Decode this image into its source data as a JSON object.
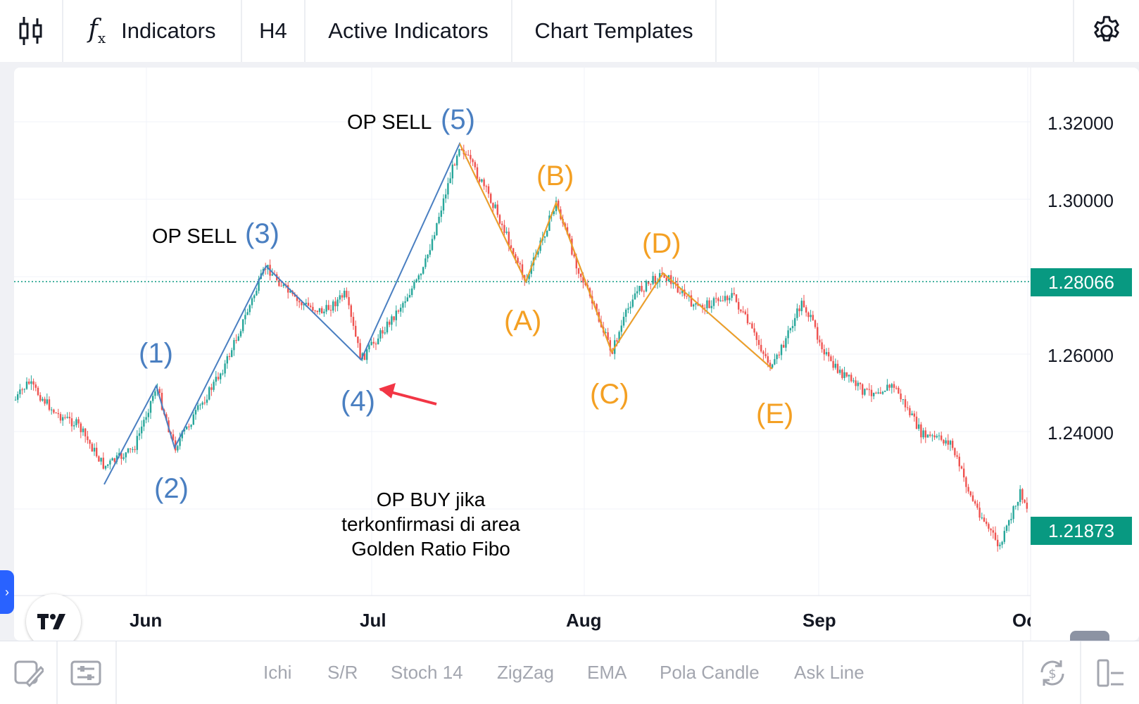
{
  "toolbar": {
    "chart_type_icon": "candlestick-icon",
    "indicators_icon": "fx-icon",
    "indicators_label": "Indicators",
    "timeframe": "H4",
    "active_indicators_label": "Active Indicators",
    "chart_templates_label": "Chart Templates",
    "settings_icon": "gear-icon"
  },
  "chart": {
    "price_axis": [
      "1.32000",
      "1.30000",
      "1.26000",
      "1.24000"
    ],
    "current_price": "1.28066",
    "ask_price": "1.21873",
    "date_axis": [
      "Jun",
      "Jul",
      "Aug",
      "Sep",
      "Oc"
    ],
    "colors": {
      "up": "#26a69a",
      "down": "#ef5350",
      "wave_blue": "#4a7fc1",
      "wave_orange": "#f4a023",
      "price_tag": "#089981"
    }
  },
  "annotations": {
    "op_sell_3": "OP SELL",
    "op_sell_5": "OP SELL",
    "w1": "(1)",
    "w2": "(2)",
    "w3": "(3)",
    "w4": "(4)",
    "w5": "(5)",
    "wA": "(A)",
    "wB": "(B)",
    "wC": "(C)",
    "wD": "(D)",
    "wE": "(E)",
    "note_line1": "OP BUY jika",
    "note_line2": "terkonfirmasi di area",
    "note_line3": "Golden Ratio Fibo"
  },
  "bottombar": {
    "draw_icon": "pencil-icon",
    "templates_icon": "sliders-icon",
    "shortcuts": [
      "Ichi",
      "S/R",
      "Stoch 14",
      "ZigZag",
      "EMA",
      "Pola Candle",
      "Ask Line"
    ],
    "sync_icon": "refresh-dollar-icon",
    "layout_icon": "layout-icon"
  }
}
